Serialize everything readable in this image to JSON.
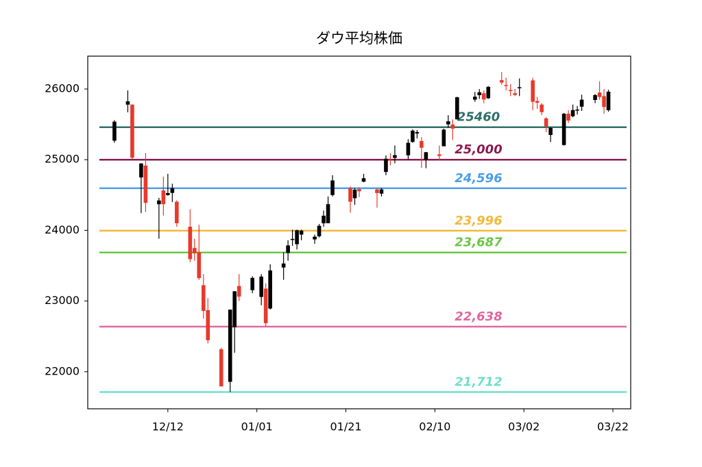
{
  "chart_data": {
    "type": "candlestick",
    "title": "ダウ平均株価",
    "x": [
      "11/30",
      "12/03",
      "12/04",
      "12/06",
      "12/07",
      "12/10",
      "12/11",
      "12/12",
      "12/13",
      "12/14",
      "12/17",
      "12/18",
      "12/19",
      "12/20",
      "12/21",
      "12/24",
      "12/26",
      "12/27",
      "12/28",
      "12/31",
      "01/02",
      "01/03",
      "01/04",
      "01/07",
      "01/08",
      "01/09",
      "01/10",
      "01/11",
      "01/14",
      "01/15",
      "01/16",
      "01/17",
      "01/18",
      "01/22",
      "01/23",
      "01/24",
      "01/25",
      "01/28",
      "01/29",
      "01/30",
      "01/31",
      "02/01",
      "02/04",
      "02/05",
      "02/06",
      "02/07",
      "02/08",
      "02/11",
      "02/12",
      "02/13",
      "02/14",
      "02/15",
      "02/19",
      "02/20",
      "02/21",
      "02/22",
      "02/25",
      "02/26",
      "02/27",
      "02/28",
      "03/01",
      "03/04",
      "03/05",
      "03/06",
      "03/07",
      "03/08",
      "03/11",
      "03/12",
      "03/13",
      "03/14",
      "03/15",
      "03/18",
      "03/19",
      "03/20",
      "03/21"
    ],
    "open": [
      25269,
      25779,
      25780,
      24749,
      24918,
      24370,
      24565,
      24500,
      24530,
      24405,
      24052,
      23750,
      23690,
      23224,
      22871,
      22317,
      21857,
      22629,
      23213,
      23154,
      23058,
      23176,
      22894,
      23474,
      23680,
      23864,
      23804,
      23940,
      23872,
      23916,
      24100,
      24101,
      24500,
      24600,
      24455,
      24583,
      24689,
      24578,
      24520,
      24826,
      25000,
      25025,
      25062,
      25251,
      25371,
      25265,
      25000,
      25075,
      25190,
      25500,
      25497,
      25571,
      25850,
      25913,
      25940,
      25869,
      26126,
      26058,
      25986,
      25940,
      26019,
      26122,
      25830,
      25780,
      25585,
      25350,
      25208,
      25650,
      25615,
      25707,
      25750,
      25845,
      25950,
      25900,
      25700
    ],
    "high": [
      25560,
      25980,
      25780,
      24950,
      25095,
      24460,
      24761,
      24800,
      24660,
      24425,
      24300,
      23880,
      24080,
      23380,
      23040,
      22340,
      22880,
      23140,
      23381,
      23350,
      23380,
      23250,
      23520,
      23690,
      23860,
      24010,
      24010,
      24010,
      23940,
      24090,
      24280,
      24480,
      24780,
      24620,
      24600,
      24610,
      24800,
      24600,
      24600,
      25060,
      25090,
      25200,
      25290,
      25430,
      25420,
      25320,
      25110,
      25200,
      25440,
      25630,
      25570,
      25890,
      25960,
      26000,
      25980,
      26040,
      26240,
      26160,
      26070,
      26000,
      26150,
      26160,
      25890,
      25800,
      25600,
      25460,
      25660,
      25700,
      25780,
      25760,
      25920,
      25930,
      26110,
      26000,
      25990
    ],
    "low": [
      25240,
      25670,
      25010,
      24243,
      24260,
      23881,
      24210,
      24490,
      24400,
      24050,
      23550,
      23570,
      23300,
      22750,
      22400,
      21792,
      21712,
      22267,
      23000,
      23110,
      22940,
      22640,
      22880,
      23300,
      23570,
      23780,
      23730,
      23860,
      23810,
      23900,
      24050,
      24100,
      24480,
      24250,
      24360,
      24470,
      24680,
      24320,
      24480,
      24780,
      24920,
      24950,
      25000,
      25240,
      25300,
      24884,
      24880,
      24990,
      25190,
      25450,
      25280,
      25570,
      25820,
      25860,
      25800,
      25860,
      26060,
      25980,
      25900,
      25900,
      25900,
      25700,
      25720,
      25630,
      25390,
      25250,
      25200,
      25520,
      25600,
      25640,
      25690,
      25800,
      25850,
      25650,
      25680
    ],
    "close": [
      25538,
      25826,
      25027,
      24947,
      24389,
      24423,
      24370,
      24527,
      24597,
      24101,
      23593,
      23675,
      23324,
      22860,
      22445,
      21792,
      22878,
      23138,
      23062,
      23327,
      23346,
      22686,
      23433,
      23531,
      23787,
      23879,
      24001,
      23996,
      23910,
      24065,
      24207,
      24370,
      24706,
      24405,
      24575,
      24553,
      24738,
      24528,
      24579,
      25014,
      24999,
      25064,
      25239,
      25411,
      25390,
      25169,
      25106,
      25053,
      25425,
      25543,
      25439,
      25883,
      25891,
      25954,
      25851,
      26031,
      26091,
      26057,
      25985,
      25916,
      26026,
      25819,
      25806,
      25673,
      25473,
      25450,
      25650,
      25554,
      25702,
      25709,
      25849,
      25914,
      25887,
      25745,
      25962
    ],
    "up_color": "#000000",
    "down_color": "#e8392c",
    "xlim": [
      "11/24",
      "03/26"
    ],
    "xticks": [
      "12/12",
      "01/01",
      "01/21",
      "02/10",
      "03/02",
      "03/22"
    ],
    "ylim": [
      21475,
      26465
    ],
    "yticks": [
      22000,
      23000,
      24000,
      25000,
      26000
    ],
    "levels": {
      "values": [
        25460,
        25000,
        24596,
        23996,
        23687,
        22638,
        21712
      ],
      "value_labels": [
        "25460",
        "25,000",
        "24,596",
        "23,996",
        "23,687",
        "22,638",
        "21,712"
      ],
      "colors": [
        "#2f6f6a",
        "#8b1a4f",
        "#4a9ee8",
        "#f0b93a",
        "#6cc644",
        "#e066a0",
        "#6ee0c8"
      ]
    }
  }
}
